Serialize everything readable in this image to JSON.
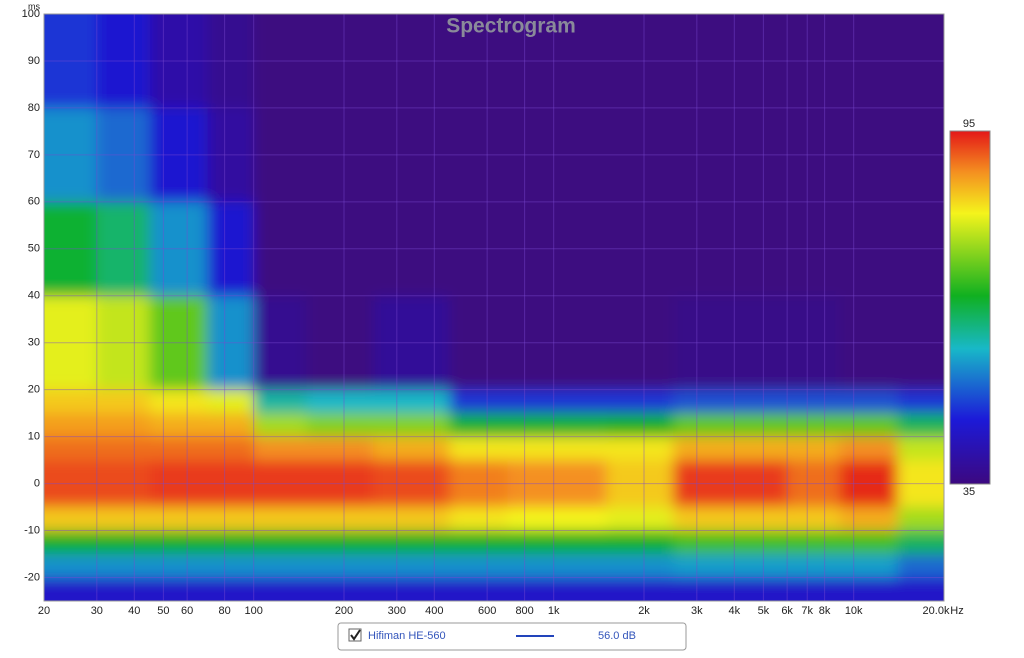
{
  "chart_data": {
    "type": "spectrogram",
    "title": "Spectrogram",
    "x_label": "Hz",
    "y_label": "ms",
    "xlim": [
      20,
      20000
    ],
    "log_x": true,
    "xticks": [
      20,
      30,
      40,
      50,
      60,
      80,
      100,
      200,
      300,
      400,
      600,
      800,
      {
        "value": 1000,
        "label": "1k"
      },
      {
        "value": 2000,
        "label": "2k"
      },
      {
        "value": 3000,
        "label": "3k"
      },
      {
        "value": 4000,
        "label": "4k"
      },
      {
        "value": 5000,
        "label": "5k"
      },
      {
        "value": 6000,
        "label": "6k"
      },
      {
        "value": 7000,
        "label": "7k"
      },
      {
        "value": 8000,
        "label": "8k"
      },
      {
        "value": 10000,
        "label": "10k"
      },
      {
        "value": 20000,
        "label": "20.0k"
      }
    ],
    "ylim": [
      -25,
      100
    ],
    "yticks": [
      100,
      90,
      80,
      70,
      60,
      50,
      40,
      30,
      20,
      10,
      0,
      -10,
      -20
    ],
    "grid": true,
    "background": "#4b1590",
    "zlim": [
      35,
      95
    ],
    "zticks": [
      95,
      35
    ],
    "colormap": [
      [
        35,
        "#3c0880"
      ],
      [
        46,
        "#1c1ad8"
      ],
      [
        58,
        "#18b8c8"
      ],
      [
        67,
        "#10b020"
      ],
      [
        81,
        "#f4f41c"
      ],
      [
        88,
        "#f49020"
      ],
      [
        95,
        "#e41818"
      ]
    ],
    "freq_edges": [
      20,
      30,
      45,
      70,
      100,
      150,
      250,
      450,
      700,
      1000,
      1500,
      2500,
      4000,
      6000,
      9000,
      14000,
      20000
    ],
    "time_edges": [
      100,
      80,
      60,
      40,
      20,
      15,
      10,
      5,
      0,
      -5,
      -10,
      -15,
      -20,
      -25
    ],
    "z": [
      [
        48,
        45,
        40,
        37,
        35,
        35,
        35,
        35,
        35,
        35,
        35,
        35,
        35,
        35,
        35,
        35
      ],
      [
        55,
        52,
        45,
        39,
        35,
        35,
        35,
        35,
        35,
        35,
        35,
        35,
        35,
        35,
        35,
        35
      ],
      [
        66,
        63,
        55,
        45,
        35,
        35,
        35,
        35,
        35,
        35,
        35,
        35,
        35,
        35,
        35,
        35
      ],
      [
        80,
        78,
        72,
        55,
        37,
        35,
        38,
        35,
        35,
        35,
        35,
        36,
        36,
        36,
        35,
        35
      ],
      [
        84,
        84,
        82,
        80,
        60,
        58,
        58,
        48,
        48,
        48,
        48,
        50,
        50,
        50,
        50,
        48
      ],
      [
        87,
        87,
        86,
        86,
        76,
        74,
        74,
        66,
        66,
        66,
        67,
        72,
        72,
        72,
        72,
        64
      ],
      [
        90,
        90,
        90,
        90,
        88,
        88,
        86,
        82,
        82,
        82,
        82,
        86,
        86,
        86,
        88,
        78
      ],
      [
        92,
        92,
        93,
        93,
        93,
        93,
        92,
        89,
        88,
        88,
        84,
        93,
        93,
        90,
        94,
        82
      ],
      [
        92,
        92,
        93,
        93,
        93,
        93,
        92,
        89,
        88,
        88,
        84,
        93,
        93,
        90,
        94,
        82
      ],
      [
        84,
        84,
        84,
        84,
        84,
        84,
        84,
        82,
        81,
        81,
        80,
        84,
        84,
        84,
        86,
        76
      ],
      [
        67,
        67,
        67,
        67,
        67,
        67,
        67,
        67,
        67,
        67,
        67,
        70,
        70,
        70,
        70,
        64
      ],
      [
        55,
        55,
        55,
        55,
        55,
        55,
        55,
        55,
        55,
        55,
        55,
        56,
        56,
        56,
        56,
        52
      ],
      [
        44,
        44,
        44,
        44,
        44,
        44,
        44,
        44,
        44,
        44,
        44,
        44,
        44,
        44,
        44,
        44
      ]
    ],
    "legend": {
      "name": "Hifiman HE-560",
      "color": "#2244bb",
      "level": "56.0 dB"
    }
  }
}
